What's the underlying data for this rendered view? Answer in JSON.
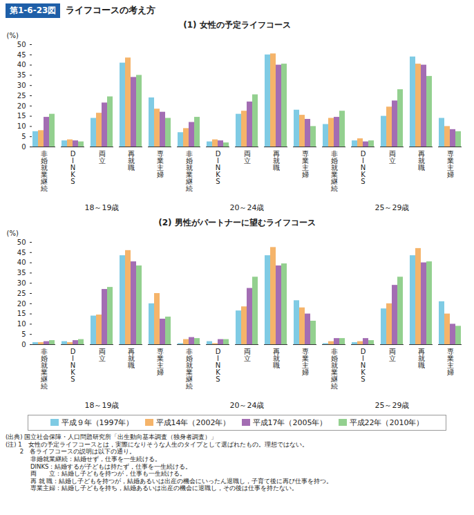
{
  "figure": {
    "number": "第1-6-23図",
    "title": "ライフコースの考え方",
    "source": "(出典) 国立社会保障・人口問題研究所「出生動向基本調査（独身者調査）」",
    "notes": [
      "(注) 1　女性の予定ライフコースとは，実際になりそうな人生のタイプとして選ばれたもの。理想ではない。",
      "　　 2　各ライフコースの説明は以下の通り。",
      "　　　　非婚就業継続：結婚せず，仕事を一生続ける。",
      "　　　　DINKS：結婚するが子どもは持たず，仕事を一生続ける。",
      "　　　　両　　立：結婚し子どもを持つが，仕事も一生続ける。",
      "　　　　再 就 職：結婚し子どもを持つが，結婚あるいは出産の機会にいったん退職し，子育て後に再び仕事を持つ。",
      "　　　　専業主婦：結婚し子どもを持ち，結婚あるいは出産の機会に退職し，その後は仕事を持たない。"
    ]
  },
  "chart_data": [
    {
      "type": "bar",
      "title": "(1) 女性の予定ライフコース",
      "y_label": "(%)",
      "groups": [
        "18～19歳",
        "20～24歳",
        "25～29歳"
      ],
      "categories": [
        "非婚就業継続",
        "DINKS",
        "両立",
        "再就職",
        "専業主婦"
      ],
      "ylim": [
        0,
        50
      ],
      "yticks": [
        0,
        5,
        10,
        15,
        20,
        25,
        30,
        35,
        40,
        45,
        50
      ],
      "series": [
        {
          "name": "平成９年（1997年）",
          "color": "#7fcbe4",
          "values": [
            [
              7.5,
              3,
              14,
              41,
              24
            ],
            [
              7,
              2.5,
              16,
              45,
              18
            ],
            [
              11,
              3,
              15,
              44,
              14
            ]
          ]
        },
        {
          "name": "平成14年（2002年）",
          "color": "#f5b46a",
          "values": [
            [
              8,
              3.5,
              16.5,
              43.5,
              18.5
            ],
            [
              9,
              3.5,
              17.5,
              45.5,
              15.5
            ],
            [
              14,
              4,
              19.5,
              40.5,
              10
            ]
          ]
        },
        {
          "name": "平成17年（2005年）",
          "color": "#a36db3",
          "values": [
            [
              14.5,
              3,
              21.5,
              34,
              17
            ],
            [
              12,
              3,
              22,
              40,
              13.5
            ],
            [
              14.5,
              2.5,
              22.5,
              40,
              8.5
            ]
          ]
        },
        {
          "name": "平成22年（2010年）",
          "color": "#93d08f",
          "values": [
            [
              16,
              2.5,
              24.5,
              35,
              14
            ],
            [
              14.5,
              2,
              25.5,
              40.5,
              10
            ],
            [
              17.5,
              3,
              28,
              34.5,
              7.5
            ]
          ]
        }
      ]
    },
    {
      "type": "bar",
      "title": "(2) 男性がパートナーに望むライフコース",
      "y_label": "(%)",
      "groups": [
        "18～19歳",
        "20～24歳",
        "25～29歳"
      ],
      "categories": [
        "非婚就業継続",
        "DINKS",
        "両立",
        "再就職",
        "専業主婦"
      ],
      "ylim": [
        0,
        50
      ],
      "yticks": [
        0,
        5,
        10,
        15,
        20,
        25,
        30,
        35,
        40,
        45,
        50
      ],
      "series": [
        {
          "name": "平成９年（1997年）",
          "color": "#7fcbe4",
          "values": [
            [
              1,
              1.5,
              14,
              43.5,
              20
            ],
            [
              0.5,
              1.5,
              16.5,
              43.5,
              21.5
            ],
            [
              0.5,
              1,
              17.5,
              43.5,
              21
            ]
          ]
        },
        {
          "name": "平成14年（2002年）",
          "color": "#f5b46a",
          "values": [
            [
              1,
              1,
              14.5,
              46,
              25
            ],
            [
              2.5,
              0.5,
              18.5,
              47.5,
              18
            ],
            [
              1.5,
              1.5,
              20,
              47,
              15
            ]
          ]
        },
        {
          "name": "平成17年（2005年）",
          "color": "#a36db3",
          "values": [
            [
              1.5,
              2,
              27,
              40.5,
              12.5
            ],
            [
              3.5,
              2.5,
              27.5,
              38.5,
              15
            ],
            [
              3,
              3,
              29,
              40,
              10
            ]
          ]
        },
        {
          "name": "平成22年（2010年）",
          "color": "#93d08f",
          "values": [
            [
              2,
              2.5,
              28,
              38.5,
              13.5
            ],
            [
              3,
              2.5,
              33,
              39.5,
              11.5
            ],
            [
              3,
              2,
              33,
              40.5,
              9
            ]
          ]
        }
      ]
    }
  ]
}
